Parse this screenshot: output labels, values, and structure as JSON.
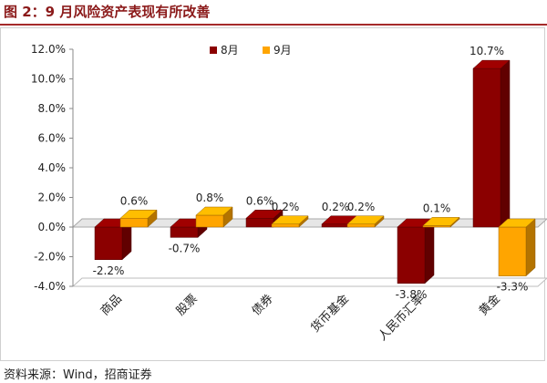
{
  "title": "图 2：9 月风险资产表现有所改善",
  "source": "资料来源：Wind，招商证券",
  "colors": {
    "series_8": "#8b0000",
    "series_9": "#ffa500",
    "title": "#8b1a1a"
  },
  "chart_data": {
    "type": "bar",
    "style": "3d-clustered-column",
    "categories": [
      "商品",
      "股票",
      "债券",
      "货币基金",
      "人民币汇率",
      "黄金"
    ],
    "series": [
      {
        "name": "8月",
        "values": [
          -2.2,
          -0.7,
          0.6,
          0.2,
          -3.8,
          10.7
        ],
        "labels": [
          "-2.2%",
          "-0.7%",
          "0.6%",
          "0.2%",
          "-3.8%",
          "10.7%"
        ]
      },
      {
        "name": "9月",
        "values": [
          0.6,
          0.8,
          0.2,
          0.2,
          0.1,
          -3.3
        ],
        "labels": [
          "0.6%",
          "0.8%",
          "0.2%",
          "0.2%",
          "0.1%",
          "-3.3%"
        ]
      }
    ],
    "ylim": [
      -4.0,
      12.0
    ],
    "ytick_labels": [
      "-4.0%",
      "-2.0%",
      "0.0%",
      "2.0%",
      "4.0%",
      "6.0%",
      "8.0%",
      "10.0%",
      "12.0%"
    ],
    "grid": false,
    "legend": "top-left"
  }
}
